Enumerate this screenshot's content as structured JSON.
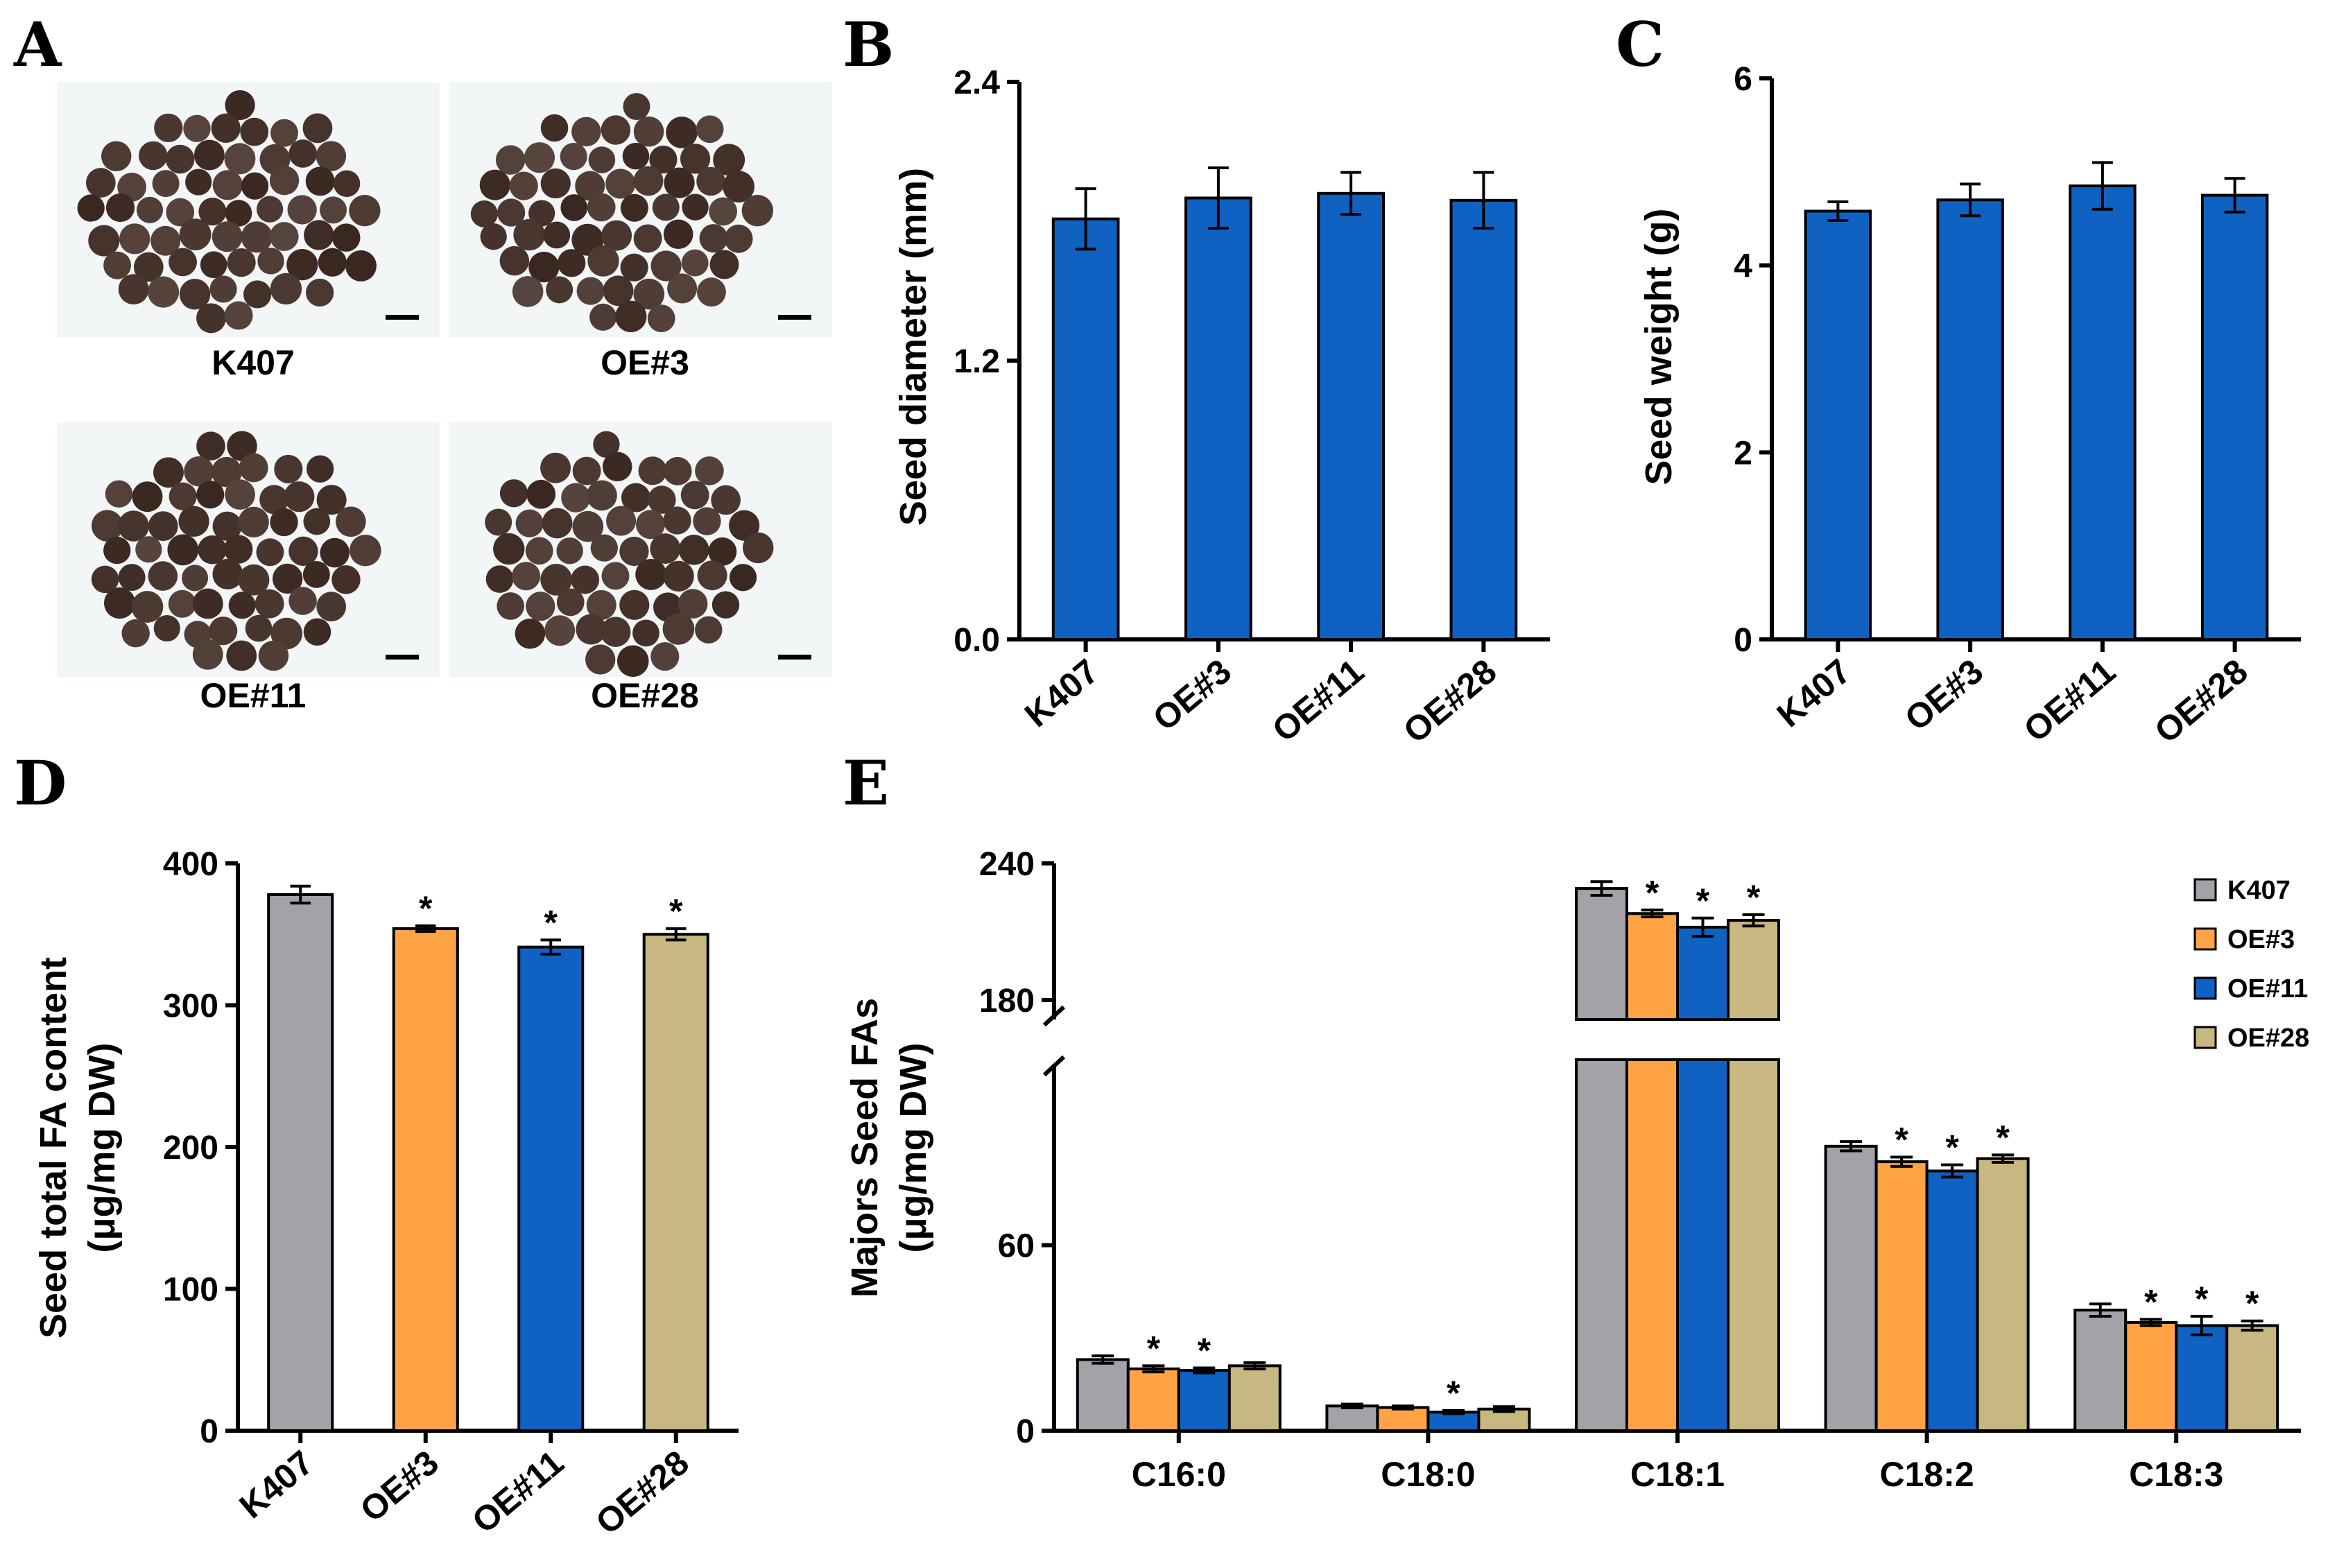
{
  "panels": {
    "A": "A",
    "B": "B",
    "C": "C",
    "D": "D",
    "E": "E"
  },
  "colors": {
    "K407": "#a3a2a8",
    "OE#3": "#ffa345",
    "OE#11": "#1062c2",
    "OE#28": "#c6b880",
    "single_bar": "#1062c2",
    "photo_bg": "#f3f6f6",
    "seed": "#3a2a24"
  },
  "photos": {
    "labels": [
      "K407",
      "OE#3",
      "OE#11",
      "OE#28"
    ]
  },
  "chart_data": [
    {
      "id": "B",
      "type": "bar",
      "categories": [
        "K407",
        "OE#3",
        "OE#11",
        "OE#28"
      ],
      "values": [
        1.81,
        1.9,
        1.92,
        1.89
      ],
      "errors": [
        0.13,
        0.13,
        0.09,
        0.12
      ],
      "ylabel": "Seed diameter (mm)",
      "ylim": [
        0,
        2.4
      ],
      "yticks": [
        "0.0",
        "1.2",
        "2.4"
      ],
      "ytick_values": [
        0,
        1.2,
        2.4
      ]
    },
    {
      "id": "C",
      "type": "bar",
      "categories": [
        "K407",
        "OE#3",
        "OE#11",
        "OE#28"
      ],
      "values": [
        4.58,
        4.7,
        4.85,
        4.75
      ],
      "errors": [
        0.1,
        0.17,
        0.25,
        0.18
      ],
      "ylabel": "Seed weight (g)",
      "ylim": [
        0,
        6
      ],
      "yticks": [
        "0",
        "2",
        "4",
        "6"
      ],
      "ytick_values": [
        0,
        2,
        4,
        6
      ]
    },
    {
      "id": "D",
      "type": "bar",
      "categories": [
        "K407",
        "OE#3",
        "OE#11",
        "OE#28"
      ],
      "values": [
        378,
        354,
        341,
        350
      ],
      "errors": [
        6,
        2,
        5,
        4
      ],
      "significant": [
        false,
        true,
        true,
        true
      ],
      "ylabel_line1": "Seed total FA content",
      "ylabel_line2": "(μg/mg DW)",
      "ylim": [
        0,
        400
      ],
      "yticks": [
        "0",
        "100",
        "200",
        "300",
        "400"
      ],
      "ytick_values": [
        0,
        100,
        200,
        300,
        400
      ]
    },
    {
      "id": "E",
      "type": "bar",
      "categories": [
        "C16:0",
        "C18:0",
        "C18:1",
        "C18:2",
        "C18:3"
      ],
      "series": [
        {
          "name": "K407",
          "values": [
            23,
            8,
            229,
            92,
            39
          ],
          "errors": [
            1.2,
            0.6,
            3,
            1.5,
            2
          ]
        },
        {
          "name": "OE#3",
          "values": [
            20,
            7.5,
            218,
            87,
            35
          ],
          "errors": [
            1,
            0.5,
            1.5,
            1.5,
            1
          ]
        },
        {
          "name": "OE#11",
          "values": [
            19.5,
            6,
            212,
            84,
            34
          ],
          "errors": [
            0.8,
            0.5,
            4,
            2,
            3
          ]
        },
        {
          "name": "OE#28",
          "values": [
            21,
            7,
            215,
            88,
            34
          ],
          "errors": [
            1,
            0.8,
            2.5,
            1.2,
            1.5
          ]
        }
      ],
      "significant": [
        [
          false,
          false,
          false,
          false,
          false
        ],
        [
          true,
          false,
          true,
          true,
          true
        ],
        [
          true,
          true,
          true,
          true,
          true
        ],
        [
          false,
          false,
          true,
          true,
          true
        ]
      ],
      "ylabel_line1": "Majors Seed FAs",
      "ylabel_line2": "(μg/mg DW)",
      "yaxis": "broken",
      "ylim": [
        0,
        240
      ],
      "yticks": [
        "0",
        "60",
        "180",
        "240"
      ],
      "ytick_values": [
        0,
        60,
        180,
        240
      ],
      "legend": [
        "K407",
        "OE#3",
        "OE#11",
        "OE#28"
      ],
      "legend_position": "top-right",
      "significance_mark": "*"
    }
  ]
}
